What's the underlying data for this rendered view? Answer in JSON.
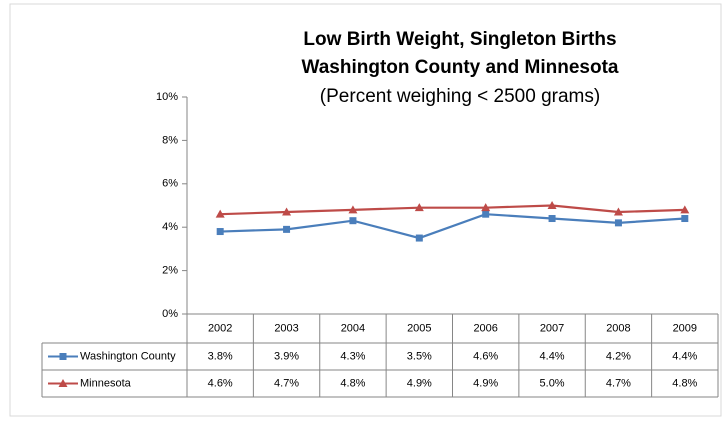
{
  "chart_data": {
    "type": "line",
    "title": "Low Birth Weight, Singleton Births",
    "subtitle": "Washington County and Minnesota",
    "note": "(Percent weighing < 2500 grams)",
    "categories": [
      "2002",
      "2003",
      "2004",
      "2005",
      "2006",
      "2007",
      "2008",
      "2009"
    ],
    "series": [
      {
        "name": "Washington County",
        "color": "#4a7ebb",
        "marker": "square",
        "values": [
          3.8,
          3.9,
          4.3,
          3.5,
          4.6,
          4.4,
          4.2,
          4.4
        ],
        "value_labels": [
          "3.8%",
          "3.9%",
          "4.3%",
          "3.5%",
          "4.6%",
          "4.4%",
          "4.2%",
          "4.4%"
        ]
      },
      {
        "name": "Minnesota",
        "color": "#be4b48",
        "marker": "triangle",
        "values": [
          4.6,
          4.7,
          4.8,
          4.9,
          4.9,
          5.0,
          4.7,
          4.8
        ],
        "value_labels": [
          "4.6%",
          "4.7%",
          "4.8%",
          "4.9%",
          "4.9%",
          "5.0%",
          "4.7%",
          "4.8%"
        ]
      }
    ],
    "ylim": [
      0,
      10
    ],
    "yticks": [
      {
        "value": 0,
        "label": "0%"
      },
      {
        "value": 2,
        "label": "2%"
      },
      {
        "value": 4,
        "label": "4%"
      },
      {
        "value": 6,
        "label": "6%"
      },
      {
        "value": 8,
        "label": "8%"
      },
      {
        "value": 10,
        "label": "10%"
      }
    ],
    "grid": false
  }
}
